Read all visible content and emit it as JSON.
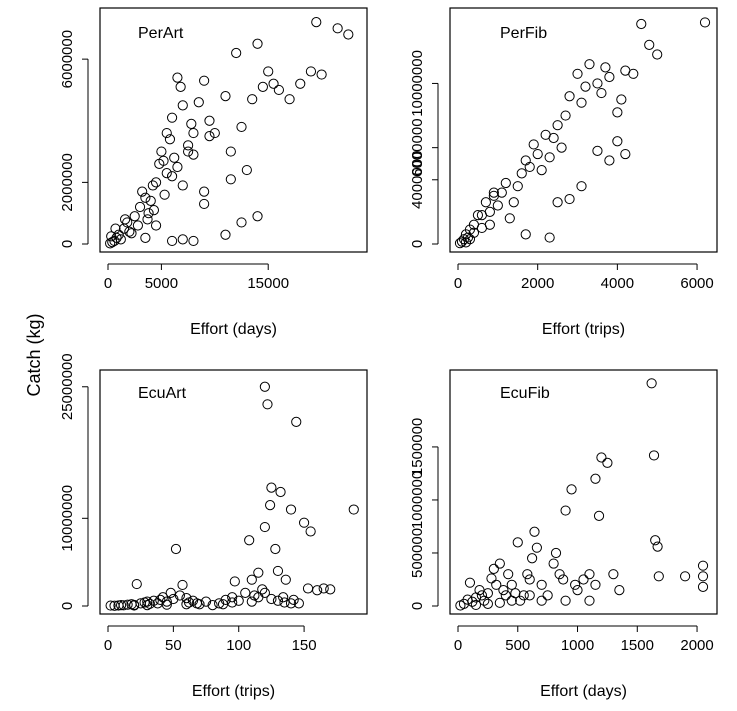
{
  "figure": {
    "ylabel": "Catch (kg)"
  },
  "chart_data": [
    {
      "type": "scatter",
      "title": "PerArt",
      "xlabel": "Effort (days)",
      "ylabel": "",
      "xlim": [
        0,
        23500
      ],
      "ylim": [
        0,
        7400000
      ],
      "xticks": [
        0,
        5000,
        15000
      ],
      "xtick_labels": [
        "0",
        "5000",
        "15000"
      ],
      "yticks": [
        0,
        2000000,
        6000000
      ],
      "ytick_labels": [
        "0",
        "2000000",
        "6000000"
      ],
      "points": [
        [
          200,
          20000
        ],
        [
          400,
          60000
        ],
        [
          600,
          100000
        ],
        [
          800,
          200000
        ],
        [
          1000,
          300000
        ],
        [
          1200,
          150000
        ],
        [
          1500,
          500000
        ],
        [
          1800,
          700000
        ],
        [
          2000,
          400000
        ],
        [
          2500,
          900000
        ],
        [
          3000,
          1200000
        ],
        [
          3200,
          1700000
        ],
        [
          3500,
          1500000
        ],
        [
          3800,
          1000000
        ],
        [
          4000,
          1400000
        ],
        [
          4200,
          1900000
        ],
        [
          4500,
          2000000
        ],
        [
          4800,
          2600000
        ],
        [
          5000,
          3000000
        ],
        [
          5200,
          2700000
        ],
        [
          5500,
          3600000
        ],
        [
          5800,
          3400000
        ],
        [
          6000,
          4100000
        ],
        [
          6200,
          2800000
        ],
        [
          6500,
          5400000
        ],
        [
          6800,
          5100000
        ],
        [
          7000,
          4500000
        ],
        [
          7500,
          3200000
        ],
        [
          7800,
          3900000
        ],
        [
          8000,
          2900000
        ],
        [
          8500,
          4600000
        ],
        [
          9000,
          5300000
        ],
        [
          9500,
          4000000
        ],
        [
          10000,
          3600000
        ],
        [
          11000,
          4800000
        ],
        [
          11500,
          2100000
        ],
        [
          12000,
          6200000
        ],
        [
          12500,
          3800000
        ],
        [
          13000,
          2400000
        ],
        [
          13500,
          4700000
        ],
        [
          14000,
          6500000
        ],
        [
          14500,
          5100000
        ],
        [
          15000,
          5600000
        ],
        [
          15500,
          5200000
        ],
        [
          16000,
          5000000
        ],
        [
          17000,
          4700000
        ],
        [
          18000,
          5200000
        ],
        [
          19000,
          5600000
        ],
        [
          19500,
          7200000
        ],
        [
          20000,
          5500000
        ],
        [
          21500,
          7000000
        ],
        [
          22500,
          6800000
        ],
        [
          6000,
          100000
        ],
        [
          7000,
          150000
        ],
        [
          8000,
          100000
        ],
        [
          11000,
          300000
        ],
        [
          12500,
          700000
        ],
        [
          14000,
          900000
        ],
        [
          3500,
          200000
        ],
        [
          4500,
          600000
        ],
        [
          2200,
          350000
        ],
        [
          1600,
          800000
        ],
        [
          700,
          500000
        ],
        [
          300,
          250000
        ],
        [
          9000,
          1300000
        ],
        [
          9000,
          1700000
        ],
        [
          11500,
          3000000
        ],
        [
          5500,
          2300000
        ],
        [
          6000,
          2200000
        ],
        [
          7000,
          1900000
        ],
        [
          7500,
          3000000
        ],
        [
          8000,
          3600000
        ],
        [
          9500,
          3500000
        ],
        [
          6500,
          2500000
        ],
        [
          5300,
          1600000
        ],
        [
          4300,
          1100000
        ],
        [
          3700,
          800000
        ],
        [
          2800,
          600000
        ]
      ]
    },
    {
      "type": "scatter",
      "title": "PerFib",
      "xlabel": "Effort (trips)",
      "ylabel": "",
      "xlim": [
        0,
        6300
      ],
      "ylim": [
        0,
        14200000
      ],
      "xticks": [
        0,
        2000,
        4000,
        6000
      ],
      "xtick_labels": [
        "0",
        "2000",
        "4000",
        "6000"
      ],
      "yticks": [
        0,
        4000000,
        6000000,
        10000000
      ],
      "ytick_labels": [
        "0",
        "4000000",
        "6000000",
        "10000000"
      ],
      "points": [
        [
          50,
          50000
        ],
        [
          100,
          150000
        ],
        [
          150,
          300000
        ],
        [
          200,
          600000
        ],
        [
          250,
          400000
        ],
        [
          300,
          900000
        ],
        [
          400,
          1200000
        ],
        [
          500,
          1800000
        ],
        [
          600,
          1000000
        ],
        [
          700,
          2600000
        ],
        [
          800,
          2000000
        ],
        [
          900,
          3000000
        ],
        [
          1000,
          2400000
        ],
        [
          1100,
          3200000
        ],
        [
          1200,
          3800000
        ],
        [
          1400,
          2600000
        ],
        [
          1500,
          3600000
        ],
        [
          1600,
          4400000
        ],
        [
          1700,
          5200000
        ],
        [
          1800,
          4800000
        ],
        [
          1900,
          6200000
        ],
        [
          2000,
          5600000
        ],
        [
          2100,
          4600000
        ],
        [
          2200,
          6800000
        ],
        [
          2300,
          5400000
        ],
        [
          2400,
          6600000
        ],
        [
          2500,
          7400000
        ],
        [
          2600,
          6000000
        ],
        [
          2700,
          8000000
        ],
        [
          2800,
          9200000
        ],
        [
          3000,
          10600000
        ],
        [
          3100,
          8800000
        ],
        [
          3200,
          9800000
        ],
        [
          3300,
          11200000
        ],
        [
          3500,
          10000000
        ],
        [
          3600,
          9400000
        ],
        [
          3700,
          11000000
        ],
        [
          3800,
          10400000
        ],
        [
          4000,
          8200000
        ],
        [
          4100,
          9000000
        ],
        [
          4200,
          10800000
        ],
        [
          4400,
          10600000
        ],
        [
          4600,
          13700000
        ],
        [
          4800,
          12400000
        ],
        [
          5000,
          11800000
        ],
        [
          6200,
          13800000
        ],
        [
          2300,
          400000
        ],
        [
          1700,
          600000
        ],
        [
          2500,
          2600000
        ],
        [
          2800,
          2800000
        ],
        [
          3100,
          3600000
        ],
        [
          3500,
          5800000
        ],
        [
          3800,
          5200000
        ],
        [
          4000,
          6400000
        ],
        [
          4200,
          5600000
        ],
        [
          800,
          1200000
        ],
        [
          1300,
          1600000
        ],
        [
          900,
          3200000
        ],
        [
          600,
          1800000
        ],
        [
          400,
          700000
        ],
        [
          300,
          300000
        ],
        [
          200,
          100000
        ]
      ]
    },
    {
      "type": "scatter",
      "title": "EcuArt",
      "xlabel": "Effort (trips)",
      "ylabel": "",
      "xlim": [
        0,
        192
      ],
      "ylim": [
        0,
        26000000
      ],
      "xticks": [
        0,
        50,
        100,
        150
      ],
      "xtick_labels": [
        "0",
        "50",
        "100",
        "150"
      ],
      "yticks": [
        0,
        10000000,
        25000000
      ],
      "ytick_labels": [
        "0",
        "10000000",
        "25000000"
      ],
      "points": [
        [
          2,
          50000
        ],
        [
          5,
          30000
        ],
        [
          8,
          60000
        ],
        [
          10,
          100000
        ],
        [
          12,
          80000
        ],
        [
          15,
          150000
        ],
        [
          18,
          200000
        ],
        [
          20,
          120000
        ],
        [
          22,
          2500000
        ],
        [
          25,
          300000
        ],
        [
          28,
          400000
        ],
        [
          30,
          500000
        ],
        [
          32,
          250000
        ],
        [
          35,
          600000
        ],
        [
          38,
          300000
        ],
        [
          40,
          700000
        ],
        [
          42,
          1000000
        ],
        [
          45,
          500000
        ],
        [
          48,
          1500000
        ],
        [
          50,
          800000
        ],
        [
          52,
          6500000
        ],
        [
          55,
          1200000
        ],
        [
          57,
          2400000
        ],
        [
          60,
          900000
        ],
        [
          62,
          400000
        ],
        [
          65,
          600000
        ],
        [
          68,
          300000
        ],
        [
          70,
          200000
        ],
        [
          75,
          500000
        ],
        [
          80,
          100000
        ],
        [
          85,
          300000
        ],
        [
          90,
          700000
        ],
        [
          95,
          1000000
        ],
        [
          97,
          2800000
        ],
        [
          100,
          600000
        ],
        [
          105,
          1500000
        ],
        [
          108,
          7500000
        ],
        [
          110,
          3000000
        ],
        [
          112,
          1200000
        ],
        [
          115,
          3800000
        ],
        [
          118,
          1900000
        ],
        [
          120,
          9000000
        ],
        [
          120,
          25000000
        ],
        [
          122,
          23000000
        ],
        [
          124,
          11500000
        ],
        [
          125,
          13500000
        ],
        [
          128,
          6500000
        ],
        [
          130,
          4000000
        ],
        [
          132,
          13000000
        ],
        [
          134,
          1000000
        ],
        [
          136,
          3000000
        ],
        [
          140,
          11000000
        ],
        [
          142,
          700000
        ],
        [
          144,
          21000000
        ],
        [
          146,
          300000
        ],
        [
          150,
          9500000
        ],
        [
          153,
          2000000
        ],
        [
          155,
          8500000
        ],
        [
          160,
          1800000
        ],
        [
          165,
          2000000
        ],
        [
          170,
          1900000
        ],
        [
          188,
          11000000
        ],
        [
          110,
          500000
        ],
        [
          115,
          1000000
        ],
        [
          120,
          1500000
        ],
        [
          125,
          800000
        ],
        [
          130,
          600000
        ],
        [
          135,
          400000
        ],
        [
          140,
          300000
        ],
        [
          95,
          400000
        ],
        [
          88,
          200000
        ],
        [
          60,
          200000
        ],
        [
          45,
          150000
        ],
        [
          30,
          100000
        ],
        [
          20,
          60000
        ]
      ]
    },
    {
      "type": "scatter",
      "title": "EcuFib",
      "xlabel": "Effort (days)",
      "ylabel": "",
      "xlim": [
        0,
        2100
      ],
      "ylim": [
        0,
        2150000
      ],
      "xticks": [
        0,
        500,
        1000,
        1500,
        2000
      ],
      "xtick_labels": [
        "0",
        "500",
        "1000",
        "1500",
        "2000"
      ],
      "yticks": [
        0,
        500000,
        1000000,
        1500000
      ],
      "ytick_labels": [
        "0",
        "500000",
        "1000000",
        "1500000"
      ],
      "points": [
        [
          20,
          5000
        ],
        [
          50,
          20000
        ],
        [
          80,
          60000
        ],
        [
          100,
          220000
        ],
        [
          120,
          40000
        ],
        [
          150,
          80000
        ],
        [
          180,
          150000
        ],
        [
          200,
          100000
        ],
        [
          220,
          50000
        ],
        [
          250,
          120000
        ],
        [
          280,
          260000
        ],
        [
          300,
          350000
        ],
        [
          320,
          200000
        ],
        [
          350,
          400000
        ],
        [
          380,
          150000
        ],
        [
          400,
          100000
        ],
        [
          420,
          300000
        ],
        [
          450,
          200000
        ],
        [
          480,
          120000
        ],
        [
          500,
          600000
        ],
        [
          520,
          50000
        ],
        [
          550,
          100000
        ],
        [
          580,
          300000
        ],
        [
          600,
          250000
        ],
        [
          620,
          450000
        ],
        [
          640,
          700000
        ],
        [
          660,
          550000
        ],
        [
          700,
          200000
        ],
        [
          750,
          100000
        ],
        [
          800,
          400000
        ],
        [
          820,
          500000
        ],
        [
          850,
          300000
        ],
        [
          880,
          250000
        ],
        [
          900,
          900000
        ],
        [
          950,
          1100000
        ],
        [
          980,
          200000
        ],
        [
          1000,
          150000
        ],
        [
          1050,
          250000
        ],
        [
          1100,
          300000
        ],
        [
          1150,
          1200000
        ],
        [
          1180,
          850000
        ],
        [
          1200,
          1400000
        ],
        [
          1250,
          1350000
        ],
        [
          1300,
          300000
        ],
        [
          1350,
          150000
        ],
        [
          1620,
          2100000
        ],
        [
          1640,
          1420000
        ],
        [
          1650,
          620000
        ],
        [
          1670,
          560000
        ],
        [
          1680,
          280000
        ],
        [
          1900,
          280000
        ],
        [
          2050,
          180000
        ],
        [
          2050,
          280000
        ],
        [
          2050,
          380000
        ],
        [
          1150,
          200000
        ],
        [
          1100,
          50000
        ],
        [
          900,
          50000
        ],
        [
          700,
          50000
        ],
        [
          600,
          100000
        ],
        [
          450,
          50000
        ],
        [
          350,
          30000
        ],
        [
          250,
          20000
        ],
        [
          150,
          10000
        ]
      ]
    }
  ]
}
